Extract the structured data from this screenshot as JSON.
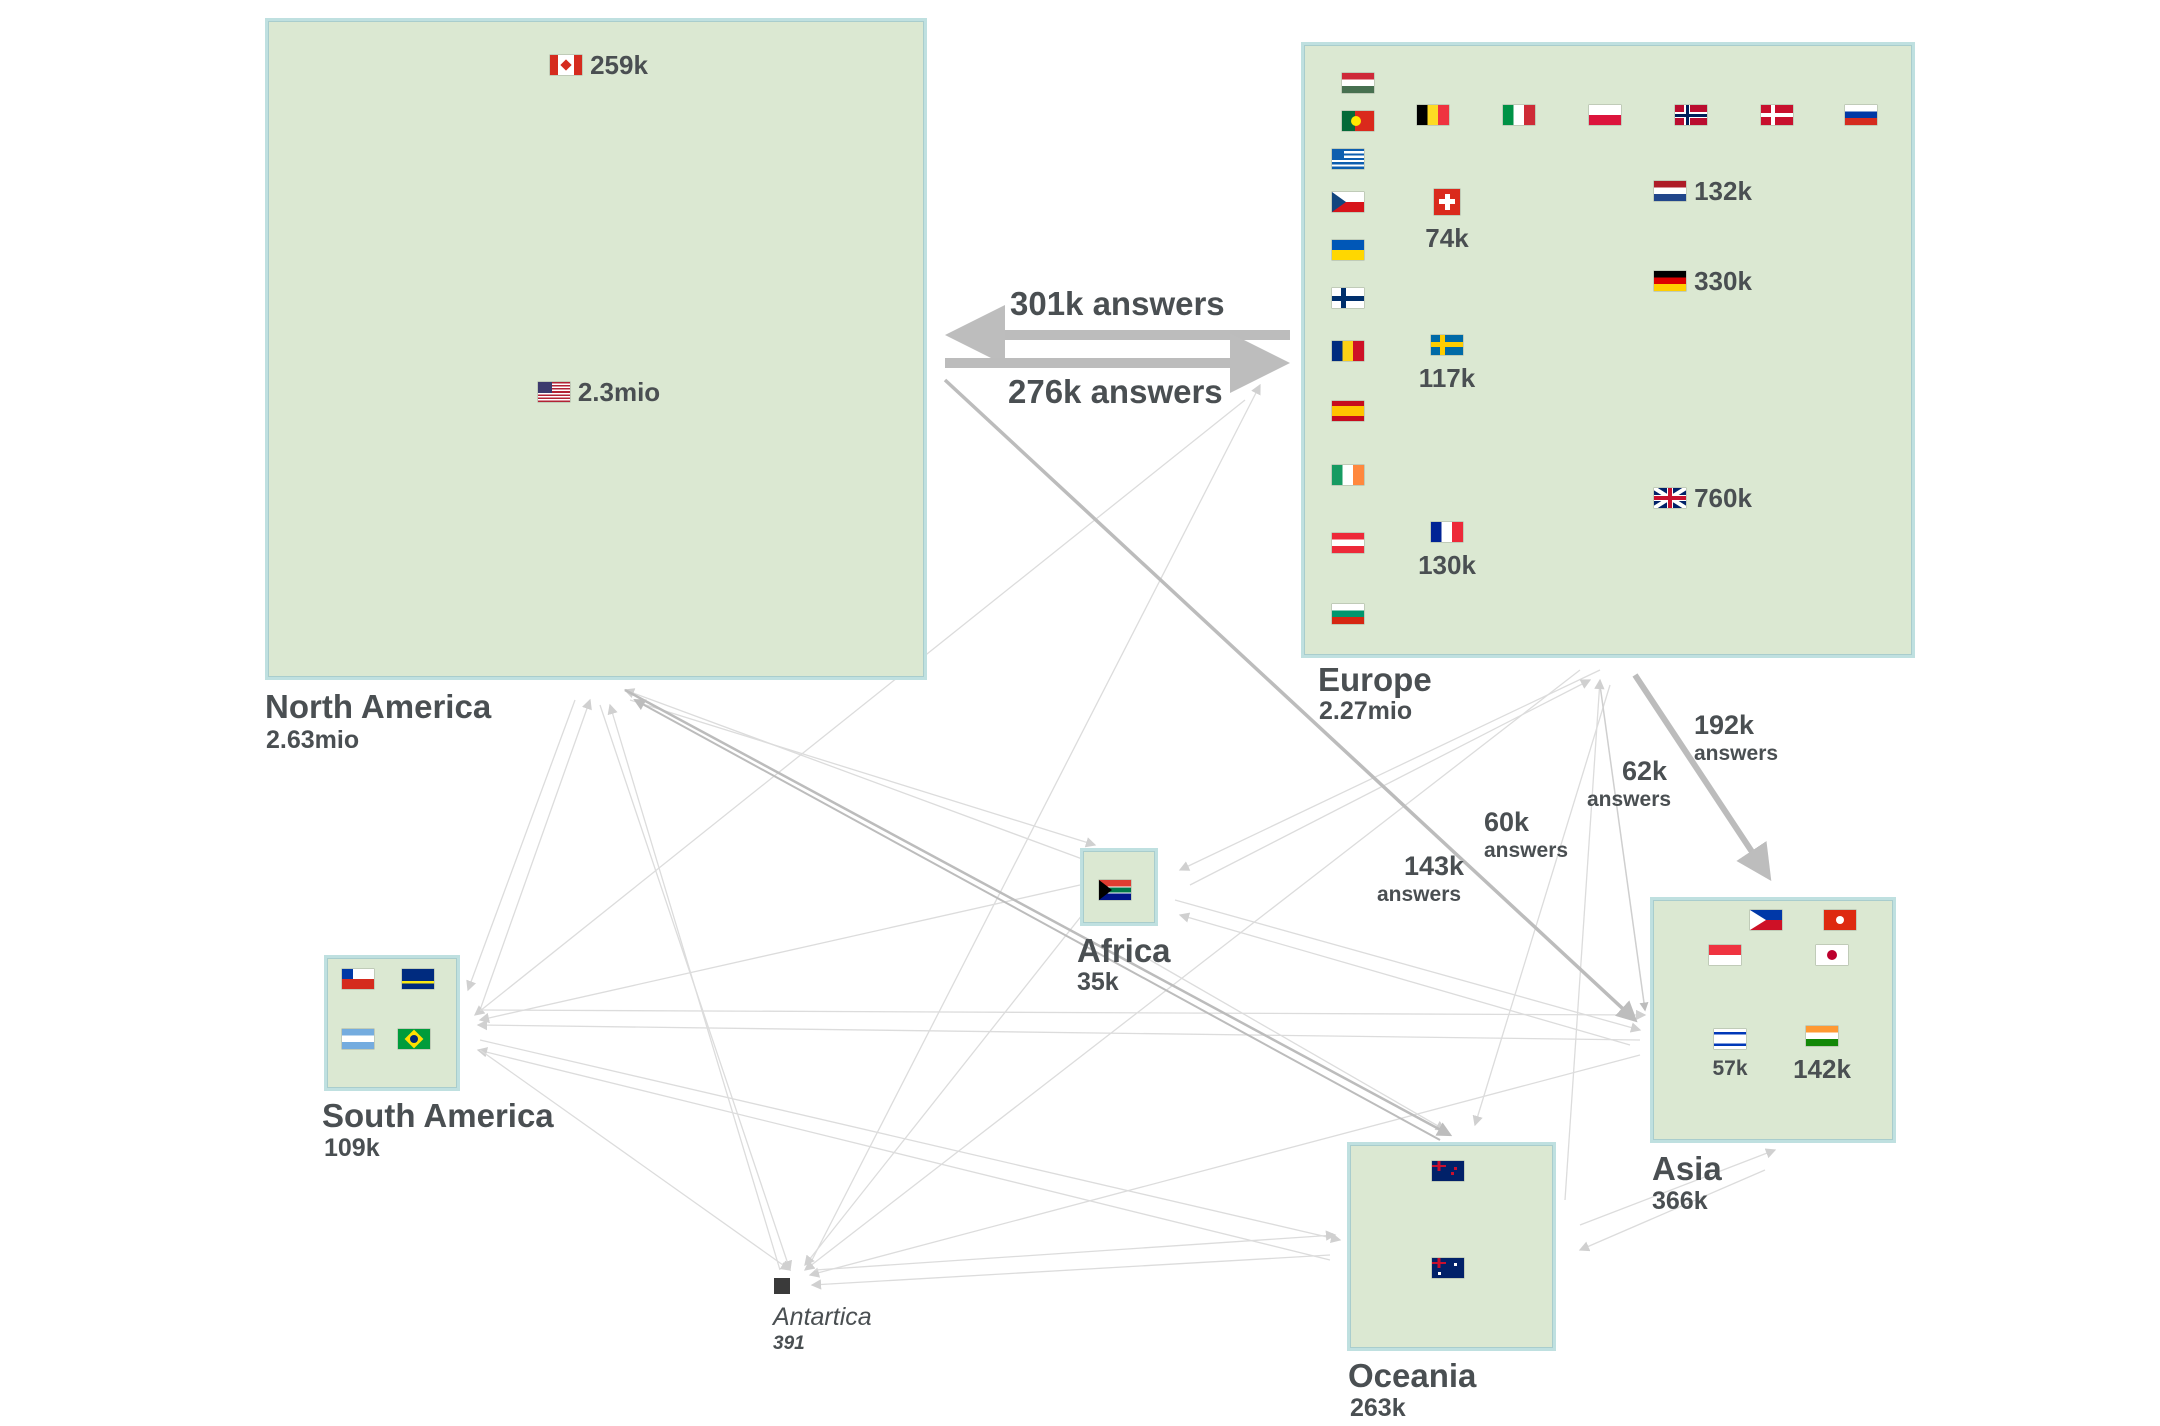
{
  "continents": {
    "north_america": {
      "name": "North America",
      "total": "2.63mio"
    },
    "europe": {
      "name": "Europe",
      "total": "2.27mio"
    },
    "asia": {
      "name": "Asia",
      "total": "366k"
    },
    "oceania": {
      "name": "Oceania",
      "total": "263k"
    },
    "south_america": {
      "name": "South America",
      "total": "109k"
    },
    "africa": {
      "name": "Africa",
      "total": "35k"
    },
    "antarctica": {
      "name": "Antartica",
      "total": "391"
    }
  },
  "countries": {
    "canada": {
      "value": "259k",
      "flag": "flag-ca"
    },
    "usa": {
      "value": "2.3mio",
      "flag": "flag-us"
    },
    "uk": {
      "value": "760k",
      "flag": "flag-gb"
    },
    "germany": {
      "value": "330k",
      "flag": "flag-de"
    },
    "netherlands": {
      "value": "132k",
      "flag": "flag-nl"
    },
    "france": {
      "value": "130k",
      "flag": "flag-fr"
    },
    "sweden": {
      "value": "117k",
      "flag": "flag-se"
    },
    "switzerland": {
      "value": "74k",
      "flag": "flag-ch"
    },
    "india": {
      "value": "142k",
      "flag": "flag-in"
    },
    "israel": {
      "value": "57k",
      "flag": "flag-il"
    }
  },
  "flows": {
    "eu_to_na": {
      "value": "301k answers"
    },
    "na_to_eu": {
      "value": "276k answers"
    },
    "eu_to_asia": {
      "value": "192k",
      "unit": "answers"
    },
    "f62": {
      "value": "62k",
      "unit": "answers"
    },
    "f60": {
      "value": "60k",
      "unit": "answers"
    },
    "na_to_asia": {
      "value": "143k",
      "unit": "answers"
    }
  },
  "colors": {
    "fill": "#dbe8d2",
    "frame": "#bfe0e0",
    "flow_major": "#bdbdbd",
    "flow_minor": "#d6d6d6"
  }
}
